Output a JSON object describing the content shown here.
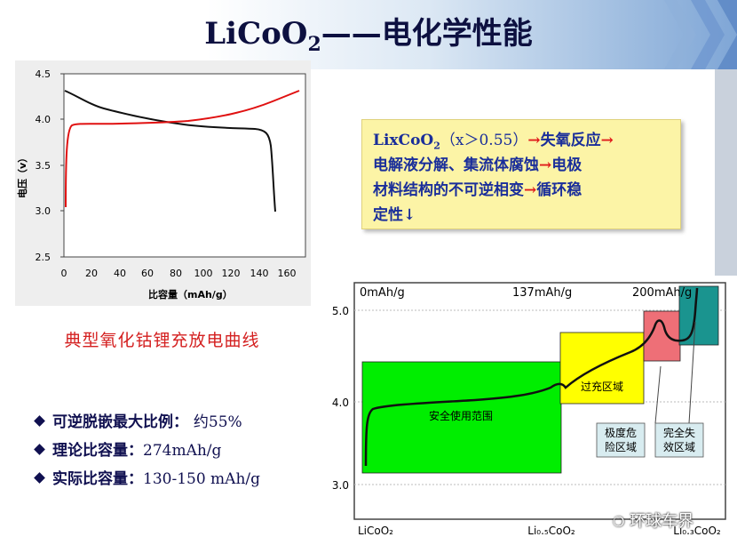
{
  "title": {
    "main": "LiCoO",
    "sub": "2",
    "rest": "——电化学性能"
  },
  "charge_discharge_chart": {
    "ylabel": "电压（v）",
    "xlabel": "比容量（mAh/g）",
    "y_ticks": [
      "4.5",
      "4.0",
      "3.5",
      "3.0",
      "2.5"
    ],
    "x_ticks": [
      "0",
      "20",
      "40",
      "60",
      "80",
      "100",
      "120",
      "140",
      "160"
    ],
    "caption": "典型氧化钴锂充放电曲线",
    "colors": {
      "charge": "#e01010",
      "discharge": "#101010"
    }
  },
  "note": {
    "line1_a": "LixCoO",
    "line1_sub": "2",
    "line1_b": "（x＞0.55）",
    "line1_c": "失氧反应",
    "line2_a": "电解液分解、集流体腐蚀",
    "line2_b": "电极",
    "line3_a": "材料结构的不可逆相变",
    "line3_b": "循环稳",
    "line4": "定性↓",
    "arrow": "→"
  },
  "bullets": [
    {
      "label": "可逆脱嵌最大比例：",
      "value": "约55%"
    },
    {
      "label": "理论比容量：",
      "value": "274mAh/g"
    },
    {
      "label": "实际比容量：",
      "value": "130-150 mAh/g"
    }
  ],
  "region_chart": {
    "top_labels": [
      "0mAh/g",
      "137mAh/g",
      "200mAh/g"
    ],
    "y_ticks": [
      "5.0",
      "4.0",
      "3.0"
    ],
    "bottom_labels": [
      "LiCoO₂",
      "Li₀.₅CoO₂",
      "Li₀.₃CoO₂"
    ],
    "regions": {
      "safe": "安全使用范围",
      "overcharge": "过充区域",
      "danger_1": "极度危",
      "danger_2": "险区域",
      "fail_1": "完全失",
      "fail_2": "效区域"
    },
    "colors": {
      "safe": "#00ee00",
      "overcharge": "#ffff00",
      "danger": "#ee6f77",
      "fail": "#1a948f"
    }
  },
  "watermark": "环球车界"
}
